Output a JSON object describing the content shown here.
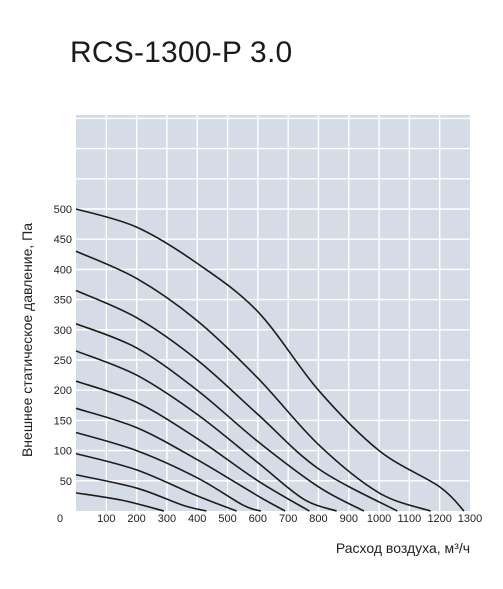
{
  "chart_data": {
    "type": "line",
    "title": "RCS-1300-P 3.0",
    "xlabel": "Расход воздуха, м³/ч",
    "ylabel": "Внешнее статическое давление, Па",
    "xlim": [
      0,
      1300
    ],
    "ylim": [
      0,
      500
    ],
    "x_ticks": [
      "0",
      "100",
      "200",
      "300",
      "400",
      "500",
      "600",
      "700",
      "800",
      "900",
      "1000",
      "1100",
      "1200",
      "1300"
    ],
    "y_ticks": [
      "50",
      "100",
      "150",
      "200",
      "250",
      "300",
      "350",
      "400",
      "450",
      "500"
    ],
    "grid": true,
    "grid_background": "#d5dbe7",
    "grid_line_color": "#ffffff",
    "curve_color": "#1c1c1c",
    "series": [
      {
        "values": [
          [
            0,
            500
          ],
          [
            200,
            470
          ],
          [
            400,
            410
          ],
          [
            600,
            330
          ],
          [
            800,
            200
          ],
          [
            1000,
            100
          ],
          [
            1200,
            40
          ],
          [
            1280,
            0
          ]
        ]
      },
      {
        "values": [
          [
            0,
            430
          ],
          [
            200,
            385
          ],
          [
            400,
            315
          ],
          [
            600,
            220
          ],
          [
            800,
            110
          ],
          [
            1000,
            30
          ],
          [
            1170,
            0
          ]
        ]
      },
      {
        "values": [
          [
            0,
            365
          ],
          [
            200,
            320
          ],
          [
            400,
            250
          ],
          [
            600,
            160
          ],
          [
            800,
            70
          ],
          [
            1060,
            0
          ]
        ]
      },
      {
        "values": [
          [
            0,
            310
          ],
          [
            200,
            270
          ],
          [
            400,
            200
          ],
          [
            600,
            115
          ],
          [
            800,
            40
          ],
          [
            950,
            0
          ]
        ]
      },
      {
        "values": [
          [
            0,
            265
          ],
          [
            200,
            225
          ],
          [
            400,
            160
          ],
          [
            600,
            80
          ],
          [
            750,
            20
          ],
          [
            860,
            0
          ]
        ]
      },
      {
        "values": [
          [
            0,
            215
          ],
          [
            200,
            180
          ],
          [
            400,
            120
          ],
          [
            600,
            50
          ],
          [
            770,
            0
          ]
        ]
      },
      {
        "values": [
          [
            0,
            170
          ],
          [
            200,
            138
          ],
          [
            400,
            85
          ],
          [
            600,
            25
          ],
          [
            690,
            0
          ]
        ]
      },
      {
        "values": [
          [
            0,
            130
          ],
          [
            200,
            100
          ],
          [
            400,
            55
          ],
          [
            550,
            10
          ],
          [
            610,
            0
          ]
        ]
      },
      {
        "values": [
          [
            0,
            95
          ],
          [
            200,
            68
          ],
          [
            400,
            25
          ],
          [
            530,
            0
          ]
        ]
      },
      {
        "values": [
          [
            0,
            60
          ],
          [
            200,
            38
          ],
          [
            350,
            10
          ],
          [
            430,
            0
          ]
        ]
      },
      {
        "values": [
          [
            0,
            30
          ],
          [
            150,
            18
          ],
          [
            290,
            0
          ]
        ]
      }
    ]
  }
}
